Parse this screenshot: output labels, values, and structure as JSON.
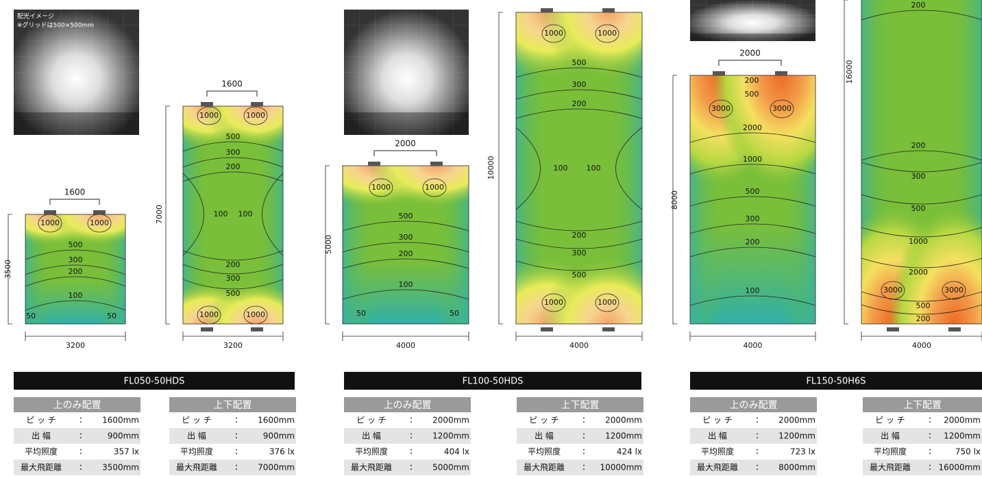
{
  "caption": {
    "title": "配光イメージ",
    "note": "※グリッドは500×500mm"
  },
  "separator": ":",
  "spec_labels": [
    "ピ ッ チ",
    "出 幅",
    "平均照度",
    "最大飛距離"
  ],
  "products": [
    {
      "name": "FL050-50HDS",
      "configs": [
        {
          "title": "上のみ配置",
          "specs": [
            "1600mm",
            "900mm",
            "357 lx",
            "3500mm"
          ],
          "diagram": {
            "pitch": "1600",
            "height": "3500",
            "width": "3200",
            "contours": [
              "1000",
              "1000",
              "500",
              "300",
              "200",
              "100",
              "50",
              "50"
            ]
          }
        },
        {
          "title": "上下配置",
          "specs": [
            "1600mm",
            "900mm",
            "376 lx",
            "7000mm"
          ],
          "diagram": {
            "pitch": "1600",
            "height": "7000",
            "width": "3200",
            "contours": [
              "1000",
              "1000",
              "500",
              "300",
              "200",
              "100",
              "100",
              "200",
              "300",
              "500",
              "1000",
              "1000"
            ]
          }
        }
      ]
    },
    {
      "name": "FL100-50HDS",
      "configs": [
        {
          "title": "上のみ配置",
          "specs": [
            "2000mm",
            "1200mm",
            "404 lx",
            "5000mm"
          ],
          "diagram": {
            "pitch": "2000",
            "height": "5000",
            "width": "4000",
            "contours": [
              "1000",
              "1000",
              "500",
              "300",
              "200",
              "100",
              "50",
              "50"
            ]
          }
        },
        {
          "title": "上下配置",
          "specs": [
            "2000mm",
            "1200mm",
            "424 lx",
            "10000mm"
          ],
          "diagram": {
            "height": "10000",
            "width": "4000",
            "contours": [
              "1000",
              "1000",
              "500",
              "300",
              "200",
              "100",
              "100",
              "200",
              "300",
              "500",
              "1000",
              "1000"
            ]
          }
        }
      ]
    },
    {
      "name": "FL150-50H6S",
      "configs": [
        {
          "title": "上のみ配置",
          "specs": [
            "2000mm",
            "1200mm",
            "723 lx",
            "8000mm"
          ],
          "diagram": {
            "pitch": "2000",
            "height": "8000",
            "width": "4000",
            "contours": [
              "200",
              "500",
              "3000",
              "3000",
              "2000",
              "1000",
              "500",
              "300",
              "200",
              "100"
            ]
          }
        },
        {
          "title": "上下配置",
          "specs": [
            "2000mm",
            "1200mm",
            "750 lx",
            "16000mm"
          ],
          "diagram": {
            "height": "16000",
            "width": "4000",
            "contours": [
              "200",
              "200",
              "300",
              "500",
              "1000",
              "2000",
              "3000",
              "3000",
              "500",
              "200"
            ]
          }
        }
      ]
    }
  ]
}
